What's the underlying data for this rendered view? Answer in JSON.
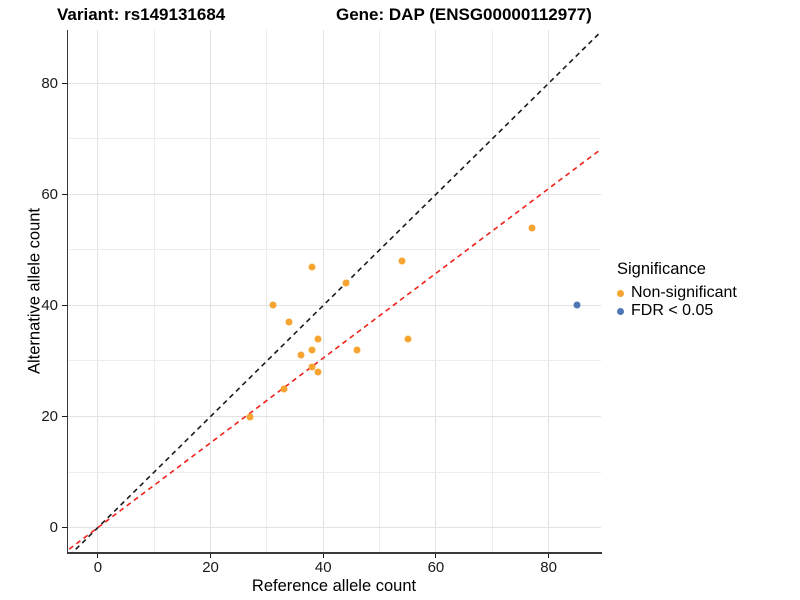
{
  "titles": {
    "left": "Variant: rs149131684",
    "right": "Gene: DAP (ENSG00000112977)"
  },
  "legend": {
    "title": "Significance",
    "items": [
      {
        "label": "Non-significant",
        "color": "#F6A532"
      },
      {
        "label": "FDR < 0.05",
        "color": "#4C79B5"
      }
    ]
  },
  "chart_data": {
    "type": "scatter",
    "title": "Variant: rs149131684  Gene: DAP (ENSG00000112977)",
    "xlabel": "Reference allele count",
    "ylabel": "Alternative allele count",
    "xlim": [
      -5.3,
      89.3
    ],
    "ylim": [
      -4.4,
      89.6
    ],
    "x_ticks": [
      0,
      20,
      40,
      60,
      80
    ],
    "y_ticks": [
      0,
      20,
      40,
      60,
      80
    ],
    "minor_gridlines": [
      10,
      30,
      50,
      70
    ],
    "grid": "on",
    "legend_position": "right",
    "series": [
      {
        "name": "Non-significant",
        "color": "#F6A532",
        "points": [
          [
            31,
            40
          ],
          [
            34,
            37
          ],
          [
            38,
            47
          ],
          [
            44,
            44
          ],
          [
            54,
            48
          ],
          [
            55,
            34
          ],
          [
            39,
            34
          ],
          [
            38,
            32
          ],
          [
            36,
            31
          ],
          [
            46,
            32
          ],
          [
            38,
            29
          ],
          [
            39,
            28
          ],
          [
            33,
            25
          ],
          [
            27,
            20
          ],
          [
            77,
            54
          ]
        ]
      },
      {
        "name": "FDR < 0.05",
        "color": "#4C79B5",
        "points": [
          [
            85,
            40
          ]
        ]
      }
    ],
    "lines": [
      {
        "name": "identity-line",
        "color": "#1a1a1a",
        "dash": "dashed",
        "slope": 1,
        "intercept": 0
      },
      {
        "name": "fit-line",
        "color": "#EF2119",
        "dash": "dashed",
        "slope": 0.763,
        "intercept": 0
      }
    ],
    "grid_color_major": "#E2E2E2",
    "grid_color_minor": "#EDEDED"
  }
}
